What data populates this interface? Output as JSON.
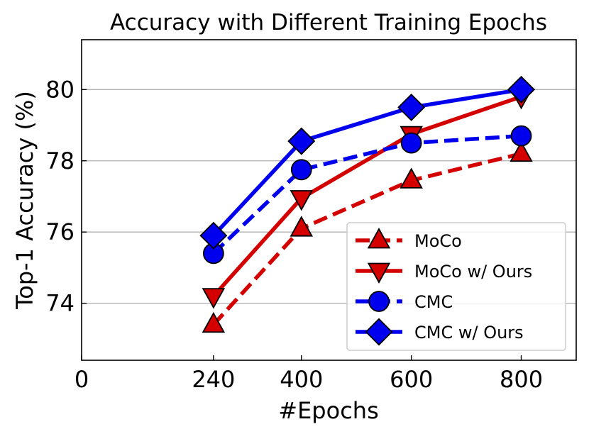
{
  "chart_data": {
    "type": "line",
    "title": "Accuracy with Different Training Epochs",
    "xlabel": "#Epochs",
    "ylabel": "Top-1 Accuracy (%)",
    "x": [
      240,
      400,
      600,
      800
    ],
    "xticks": [
      0,
      240,
      400,
      600,
      800
    ],
    "yticks": [
      74,
      76,
      78,
      80
    ],
    "xlim": [
      0,
      900
    ],
    "ylim": [
      72.4,
      81.4
    ],
    "grid": "horizontal",
    "legend_position": "bottom-right",
    "series": [
      {
        "name": "MoCo",
        "values": [
          73.4,
          76.1,
          77.45,
          78.2
        ],
        "color": "#d40000",
        "linestyle": "dashed",
        "marker": "triangle-up"
      },
      {
        "name": "MoCo w/ Ours",
        "values": [
          74.2,
          76.95,
          78.75,
          79.8
        ],
        "color": "#d40000",
        "linestyle": "solid",
        "marker": "triangle-down"
      },
      {
        "name": "CMC",
        "values": [
          75.4,
          77.75,
          78.5,
          78.7
        ],
        "color": "#0000ee",
        "linestyle": "dashed",
        "marker": "circle"
      },
      {
        "name": "CMC w/ Ours",
        "values": [
          75.9,
          78.55,
          79.5,
          80.0
        ],
        "color": "#0000ee",
        "linestyle": "solid",
        "marker": "diamond"
      }
    ]
  }
}
